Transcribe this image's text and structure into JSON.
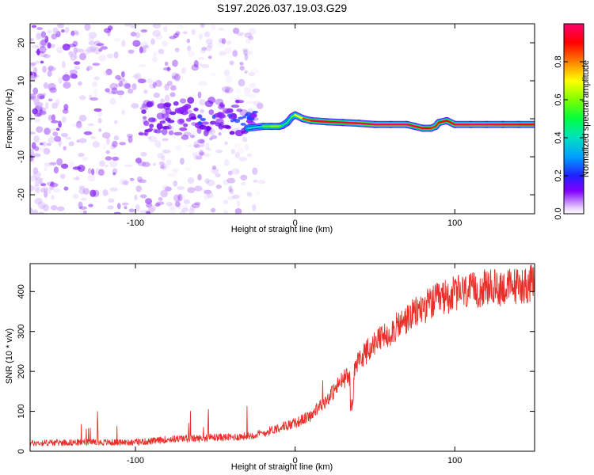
{
  "title": "S197.2026.037.19.03.G29",
  "colors": {
    "snr_line": "#e8302a",
    "axis": "#000000",
    "spectrum_low": "#8000ff"
  },
  "chart_data": [
    {
      "type": "heatmap",
      "xlabel": "Height of straight line (km)",
      "ylabel": "Frequency (Hz)",
      "xlim": [
        -166,
        150
      ],
      "ylim": [
        -25,
        25
      ],
      "x_ticks": [
        -100,
        0,
        100
      ],
      "x_tick_labels": [
        "-100",
        "0",
        "100"
      ],
      "y_ticks": [
        -20,
        -10,
        0,
        10,
        20
      ],
      "y_tick_labels": [
        "-20",
        "-10",
        "0",
        "10",
        "20"
      ],
      "colorbar": {
        "label": "Normalized spectral amplitude",
        "range": [
          0,
          1
        ],
        "ticks": [
          0.0,
          0.2,
          0.4,
          0.6,
          0.8
        ],
        "tick_labels": [
          "0.0",
          "0.2",
          "0.4",
          "0.6",
          "0.8"
        ]
      },
      "ridge_frequency": {
        "x": [
          -30,
          -20,
          -15,
          -10,
          -8,
          -5,
          -2,
          0,
          5,
          10,
          20,
          30,
          40,
          50,
          60,
          70,
          75,
          80,
          85,
          88,
          90,
          95,
          100,
          110,
          120,
          130,
          140,
          150
        ],
        "y": [
          -2.5,
          -2,
          -2,
          -2,
          -1.8,
          -1,
          0.5,
          1,
          0,
          -0.5,
          -0.8,
          -1,
          -1.2,
          -1.5,
          -1.5,
          -1.5,
          -2,
          -2.5,
          -2.5,
          -2,
          -1,
          -0.5,
          -1.5,
          -1.5,
          -1.5,
          -1.5,
          -1.5,
          -1.5
        ],
        "amplitude": [
          0.3,
          0.5,
          0.6,
          0.6,
          0.5,
          0.4,
          0.5,
          0.6,
          0.8,
          0.9,
          0.95,
          0.95,
          0.95,
          1.0,
          1.0,
          1.0,
          0.95,
          0.9,
          0.9,
          0.85,
          0.9,
          0.9,
          0.95,
          1.0,
          1.0,
          0.95,
          0.95,
          0.9
        ]
      }
    },
    {
      "type": "line",
      "xlabel": "Height of straight line (km)",
      "ylabel": "SNR (10 * v/v)",
      "xlim": [
        -166,
        150
      ],
      "ylim": [
        0,
        470
      ],
      "x_ticks": [
        -100,
        0,
        100
      ],
      "x_tick_labels": [
        "-100",
        "0",
        "100"
      ],
      "y_ticks": [
        0,
        100,
        200,
        300,
        400
      ],
      "y_tick_labels": [
        "0",
        "100",
        "200",
        "300",
        "400"
      ],
      "series": [
        {
          "name": "SNR",
          "x": [
            -166,
            -150,
            -130,
            -110,
            -100,
            -90,
            -80,
            -70,
            -60,
            -50,
            -40,
            -30,
            -20,
            -10,
            0,
            10,
            20,
            30,
            35,
            40,
            50,
            60,
            70,
            80,
            90,
            100,
            110,
            120,
            130,
            140,
            150
          ],
          "values": [
            20,
            22,
            22,
            22,
            23,
            25,
            30,
            32,
            32,
            35,
            35,
            38,
            45,
            60,
            70,
            90,
            130,
            180,
            190,
            230,
            270,
            300,
            330,
            360,
            380,
            395,
            400,
            410,
            410,
            415,
            420
          ]
        }
      ]
    }
  ]
}
